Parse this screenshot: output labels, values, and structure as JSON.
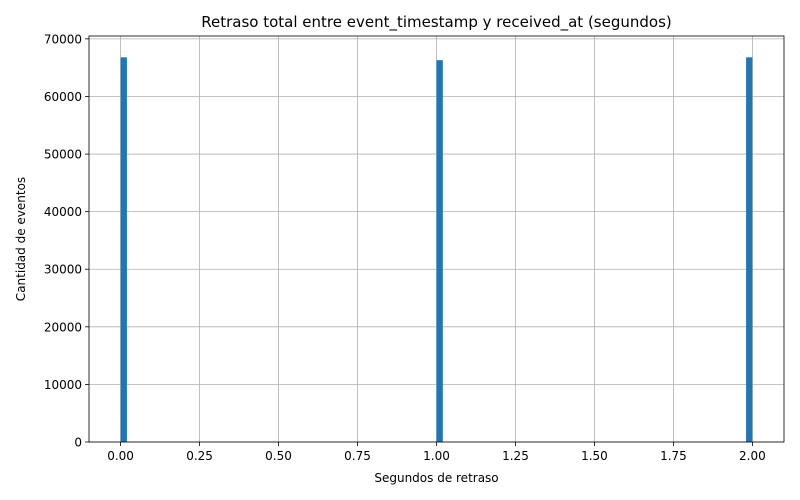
{
  "chart_data": {
    "type": "bar",
    "title": "Retraso total entre event_timestamp y received_at (segundos)",
    "xlabel": "Segundos de retraso",
    "ylabel": "Cantidad de eventos",
    "xlim": [
      -0.1,
      2.1
    ],
    "ylim": [
      0,
      70500
    ],
    "xticks": [
      0.0,
      0.25,
      0.5,
      0.75,
      1.0,
      1.25,
      1.5,
      1.75,
      2.0
    ],
    "xtick_labels": [
      "0.00",
      "0.25",
      "0.50",
      "0.75",
      "1.00",
      "1.25",
      "1.50",
      "1.75",
      "2.00"
    ],
    "yticks": [
      0,
      10000,
      20000,
      30000,
      40000,
      50000,
      60000,
      70000
    ],
    "ytick_labels": [
      "0",
      "10000",
      "20000",
      "30000",
      "40000",
      "50000",
      "60000",
      "70000"
    ],
    "grid": true,
    "bar_color": "#1f77b4",
    "bars": [
      {
        "x_start": 0.0,
        "x_end": 0.02,
        "value": 66800
      },
      {
        "x_start": 1.0,
        "x_end": 1.02,
        "value": 66300
      },
      {
        "x_start": 1.98,
        "x_end": 2.0,
        "value": 66800
      }
    ]
  }
}
